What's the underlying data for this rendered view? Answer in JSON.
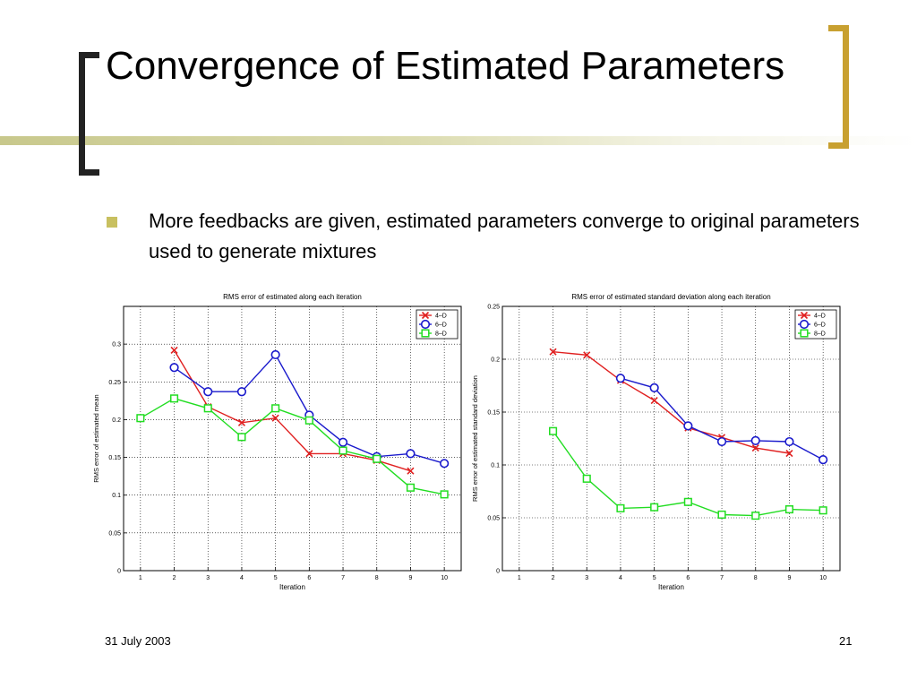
{
  "slide": {
    "title": "Convergence of Estimated Parameters",
    "bullet": "More feedbacks are given, estimated parameters converge to original parameters used to generate mixtures",
    "footer_date": "31 July 2003",
    "slide_number": "21",
    "accent_colors": {
      "bullet": "#c8c060",
      "left_bracket": "#222222",
      "right_bracket": "#c8a030"
    }
  },
  "chart_data": [
    {
      "type": "line",
      "title": "RMS error of estimated along each iteration",
      "xlabel": "Iteration",
      "ylabel": "RMS error of estimated mean",
      "x_ticks": [
        1,
        2,
        3,
        4,
        5,
        6,
        7,
        8,
        9,
        10
      ],
      "xlim": [
        0.5,
        10.5
      ],
      "ylim": [
        0,
        0.35
      ],
      "y_ticks": [
        0,
        0.05,
        0.1,
        0.15,
        0.2,
        0.25,
        0.3
      ],
      "grid": true,
      "legend": "top-right",
      "series": [
        {
          "name": "4–D",
          "color": "#e02020",
          "marker": "x",
          "x": [
            2,
            3,
            4,
            5,
            6,
            7,
            8,
            9
          ],
          "y": [
            0.292,
            0.217,
            0.196,
            0.202,
            0.155,
            0.155,
            0.146,
            0.132
          ]
        },
        {
          "name": "6–D",
          "color": "#1a1acc",
          "marker": "o",
          "x": [
            2,
            3,
            4,
            5,
            6,
            7,
            8,
            9,
            10
          ],
          "y": [
            0.269,
            0.237,
            0.237,
            0.286,
            0.206,
            0.17,
            0.151,
            0.155,
            0.142
          ]
        },
        {
          "name": "8–D",
          "color": "#22dd22",
          "marker": "s",
          "x": [
            1,
            2,
            3,
            4,
            5,
            6,
            7,
            8,
            9,
            10
          ],
          "y": [
            0.202,
            0.228,
            0.215,
            0.177,
            0.215,
            0.199,
            0.159,
            0.148,
            0.11,
            0.101
          ]
        }
      ]
    },
    {
      "type": "line",
      "title": "RMS error of estimated standard deviation along each iteration",
      "xlabel": "Iteration",
      "ylabel": "RMS error of estimated standard deviation",
      "x_ticks": [
        1,
        2,
        3,
        4,
        5,
        6,
        7,
        8,
        9,
        10
      ],
      "xlim": [
        0.5,
        10.5
      ],
      "ylim": [
        0,
        0.25
      ],
      "y_ticks": [
        0,
        0.05,
        0.1,
        0.15,
        0.2,
        0.25
      ],
      "grid": true,
      "legend": "top-right",
      "series": [
        {
          "name": "4–D",
          "color": "#e02020",
          "marker": "x",
          "x": [
            2,
            3,
            4,
            5,
            6,
            7,
            8,
            9
          ],
          "y": [
            0.207,
            0.204,
            0.18,
            0.161,
            0.135,
            0.126,
            0.116,
            0.111
          ]
        },
        {
          "name": "6–D",
          "color": "#1a1acc",
          "marker": "o",
          "x": [
            4,
            5,
            6,
            7,
            8,
            9,
            10
          ],
          "y": [
            0.182,
            0.173,
            0.137,
            0.122,
            0.123,
            0.122,
            0.105
          ]
        },
        {
          "name": "8–D",
          "color": "#22dd22",
          "marker": "s",
          "x": [
            2,
            3,
            4,
            5,
            6,
            7,
            8,
            9,
            10
          ],
          "y": [
            0.132,
            0.087,
            0.059,
            0.06,
            0.065,
            0.053,
            0.052,
            0.058,
            0.057
          ]
        }
      ]
    }
  ]
}
